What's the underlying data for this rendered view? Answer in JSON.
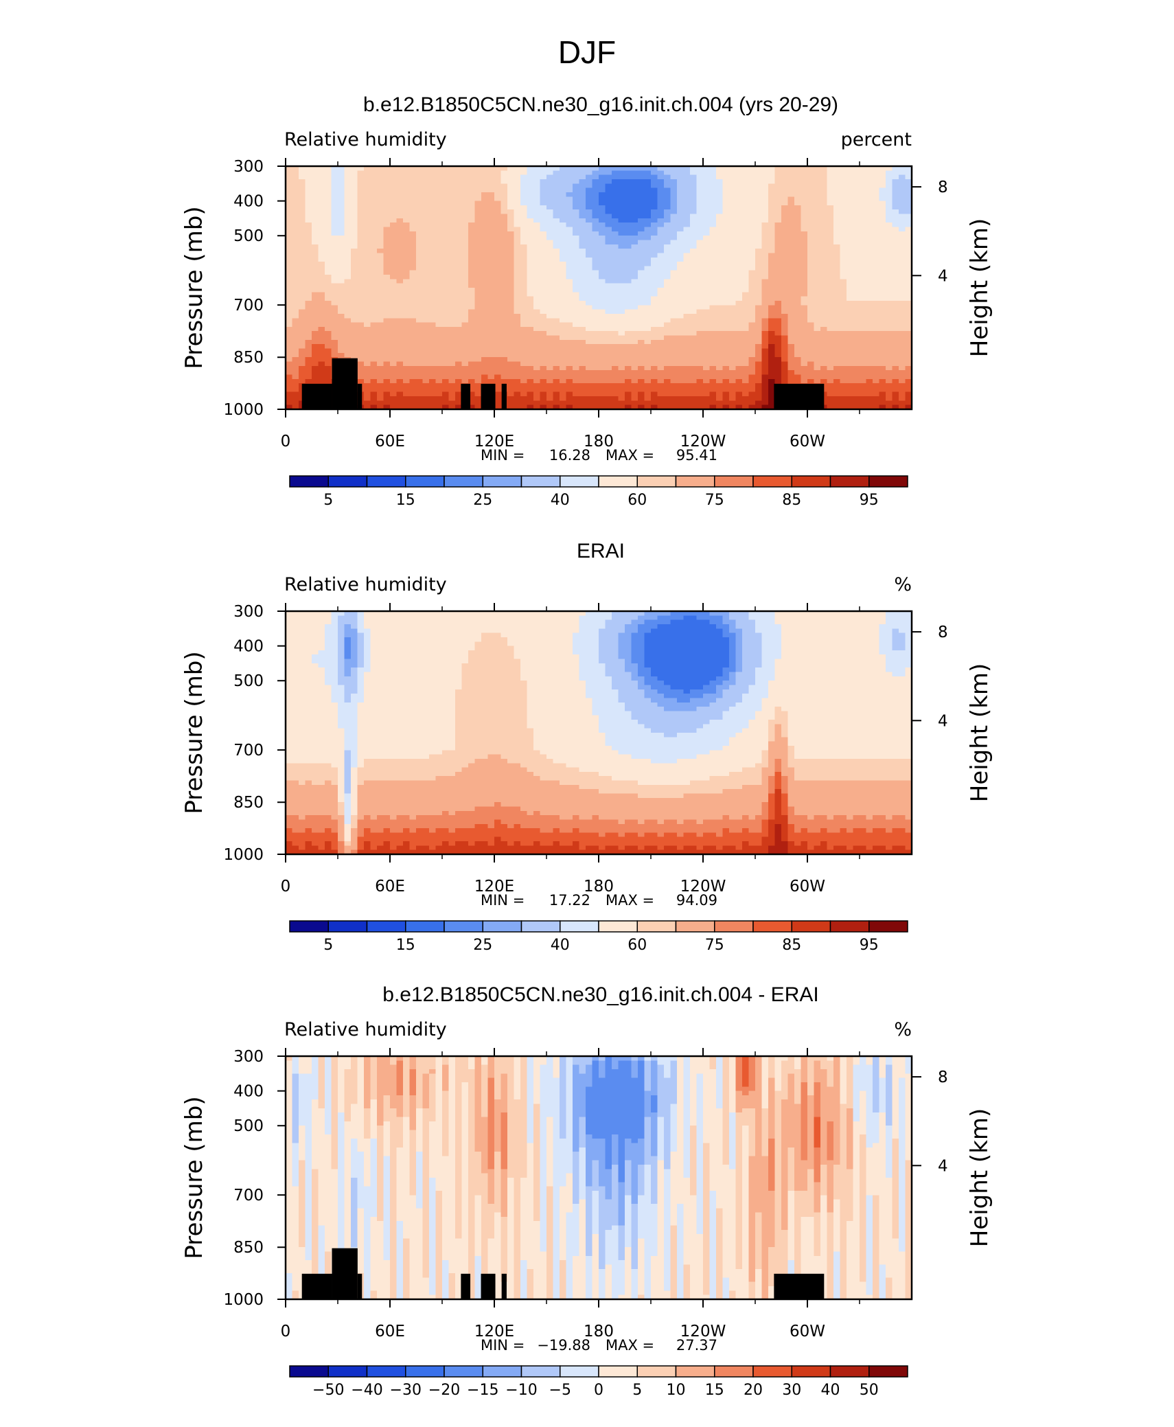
{
  "figure": {
    "title": "DJF"
  },
  "chart_data": [
    {
      "type": "heatmap",
      "title": "b.e12.B1850C5CN.ne30_g16.init.ch.004 (yrs 20-29)",
      "left_label": "Relative humidity",
      "right_label": "percent",
      "ylabel": "Pressure (mb)",
      "ylabel_right": "Height (km)",
      "x_ticks": [
        "0",
        "60E",
        "120E",
        "180",
        "120W",
        "60W"
      ],
      "y_ticks": [
        "300",
        "400",
        "500",
        "700",
        "850",
        "1000"
      ],
      "y_right_ticks": [
        "8",
        "4"
      ],
      "stats": {
        "min_label": "MIN =",
        "min": "16.28",
        "max_label": "MAX =",
        "max": "95.41"
      },
      "colorbar_labels": [
        "5",
        "15",
        "25",
        "40",
        "60",
        "75",
        "85",
        "95"
      ],
      "diverging": false
    },
    {
      "type": "heatmap",
      "title": "ERAI",
      "left_label": "Relative humidity",
      "right_label": "%",
      "ylabel": "Pressure (mb)",
      "ylabel_right": "Height (km)",
      "x_ticks": [
        "0",
        "60E",
        "120E",
        "180",
        "120W",
        "60W"
      ],
      "y_ticks": [
        "300",
        "400",
        "500",
        "700",
        "850",
        "1000"
      ],
      "y_right_ticks": [
        "8",
        "4"
      ],
      "stats": {
        "min_label": "MIN =",
        "min": "17.22",
        "max_label": "MAX =",
        "max": "94.09"
      },
      "colorbar_labels": [
        "5",
        "15",
        "25",
        "40",
        "60",
        "75",
        "85",
        "95"
      ],
      "diverging": false
    },
    {
      "type": "heatmap",
      "title": "b.e12.B1850C5CN.ne30_g16.init.ch.004 - ERAI",
      "left_label": "Relative humidity",
      "right_label": "%",
      "ylabel": "Pressure (mb)",
      "ylabel_right": "Height (km)",
      "x_ticks": [
        "0",
        "60E",
        "120E",
        "180",
        "120W",
        "60W"
      ],
      "y_ticks": [
        "300",
        "400",
        "500",
        "700",
        "850",
        "1000"
      ],
      "y_right_ticks": [
        "8",
        "4"
      ],
      "stats": {
        "min_label": "MIN =",
        "min": "−19.88",
        "max_label": "MAX =",
        "max": "27.37"
      },
      "colorbar_labels": [
        "−50",
        "−40",
        "−30",
        "−20",
        "−15",
        "−10",
        "−5",
        "0",
        "5",
        "10",
        "15",
        "20",
        "30",
        "40",
        "50"
      ],
      "diverging": true
    }
  ],
  "colors": {
    "palette": [
      "#0a0a8f",
      "#1030c8",
      "#2050e0",
      "#3870ea",
      "#5a8cf0",
      "#84aaf5",
      "#b0c8f8",
      "#d8e6fb",
      "#fde8d6",
      "#fbd0b4",
      "#f7ae8c",
      "#f08660",
      "#e85a30",
      "#d03a18",
      "#b02010",
      "#800808"
    ],
    "terrain": "#000000"
  }
}
